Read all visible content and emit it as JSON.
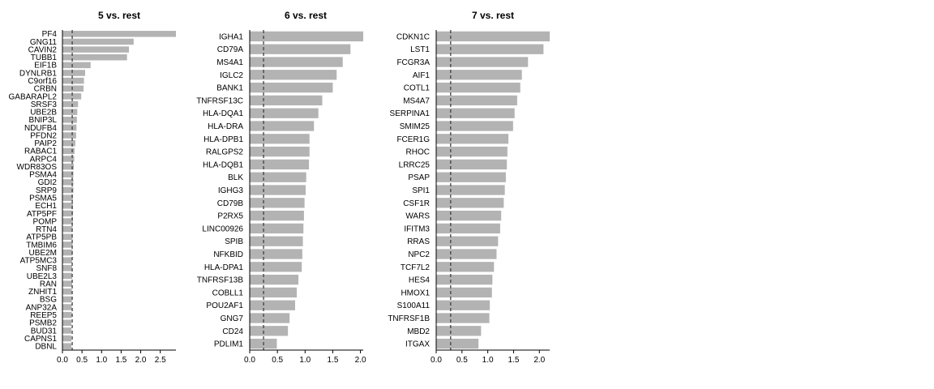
{
  "colors": {
    "bar": "#b3b3b3",
    "axis": "#000000",
    "threshold": "#404040",
    "background": "#ffffff"
  },
  "chart_data": [
    {
      "type": "bar",
      "orientation": "horizontal",
      "title": "5 vs. rest",
      "categories": [
        "PF4",
        "GNG11",
        "CAVIN2",
        "TUBB1",
        "EIF1B",
        "DYNLRB1",
        "C9orf16",
        "CRBN",
        "GABARAPL2",
        "SRSF3",
        "UBE2B",
        "BNIP3L",
        "NDUFB4",
        "PFDN2",
        "PAIP2",
        "RABAC1",
        "ARPC4",
        "WDR83OS",
        "PSMA4",
        "GDI2",
        "SRP9",
        "PSMA5",
        "ECH1",
        "ATP5PF",
        "POMP",
        "RTN4",
        "ATP5PB",
        "TMBIM6",
        "UBE2M",
        "ATP5MC3",
        "SNF8",
        "UBE2L3",
        "RAN",
        "ZNHIT1",
        "BSG",
        "ANP32A",
        "REEP5",
        "PSMB2",
        "BUD31",
        "CAPNS1",
        "DBNL"
      ],
      "values": [
        2.9,
        1.82,
        1.7,
        1.65,
        0.72,
        0.58,
        0.55,
        0.54,
        0.48,
        0.4,
        0.38,
        0.37,
        0.36,
        0.35,
        0.33,
        0.31,
        0.3,
        0.29,
        0.28,
        0.28,
        0.28,
        0.27,
        0.27,
        0.27,
        0.27,
        0.26,
        0.26,
        0.26,
        0.26,
        0.25,
        0.25,
        0.25,
        0.25,
        0.24,
        0.24,
        0.24,
        0.24,
        0.23,
        0.23,
        0.23,
        0.23
      ],
      "threshold": 0.25,
      "xlim": [
        0,
        2.9
      ],
      "xticks": [
        "0.0",
        "0.5",
        "1.0",
        "1.5",
        "2.0",
        "2.5"
      ]
    },
    {
      "type": "bar",
      "orientation": "horizontal",
      "title": "6 vs. rest",
      "categories": [
        "IGHA1",
        "CD79A",
        "MS4A1",
        "IGLC2",
        "BANK1",
        "TNFRSF13C",
        "HLA-DQA1",
        "HLA-DRA",
        "HLA-DPB1",
        "RALGPS2",
        "HLA-DQB1",
        "BLK",
        "IGHG3",
        "CD79B",
        "P2RX5",
        "LINC00926",
        "SPIB",
        "NFKBID",
        "HLA-DPA1",
        "TNFRSF13B",
        "COBLL1",
        "POU2AF1",
        "GNG7",
        "CD24",
        "PDLIM1"
      ],
      "values": [
        2.05,
        1.82,
        1.68,
        1.57,
        1.5,
        1.31,
        1.24,
        1.16,
        1.08,
        1.08,
        1.07,
        1.02,
        1.01,
        0.99,
        0.98,
        0.97,
        0.96,
        0.95,
        0.94,
        0.88,
        0.85,
        0.82,
        0.72,
        0.69,
        0.49
      ],
      "threshold": 0.25,
      "xlim": [
        0,
        2.05
      ],
      "xticks": [
        "0.0",
        "0.5",
        "1.0",
        "1.5",
        "2.0"
      ]
    },
    {
      "type": "bar",
      "orientation": "horizontal",
      "title": "7 vs. rest",
      "categories": [
        "CDKN1C",
        "LST1",
        "FCGR3A",
        "AIF1",
        "COTL1",
        "MS4A7",
        "SERPINA1",
        "SMIM25",
        "FCER1G",
        "RHOC",
        "LRRC25",
        "PSAP",
        "SPI1",
        "CSF1R",
        "WARS",
        "IFITM3",
        "RRAS",
        "NPC2",
        "TCF7L2",
        "HES4",
        "HMOX1",
        "S100A11",
        "TNFRSF1B",
        "MBD2",
        "ITGAX"
      ],
      "values": [
        2.2,
        2.08,
        1.78,
        1.66,
        1.63,
        1.57,
        1.52,
        1.49,
        1.4,
        1.38,
        1.37,
        1.35,
        1.33,
        1.31,
        1.26,
        1.24,
        1.2,
        1.17,
        1.12,
        1.09,
        1.08,
        1.04,
        1.03,
        0.87,
        0.82
      ],
      "threshold": 0.28,
      "xlim": [
        0,
        2.2
      ],
      "xticks": [
        "0.0",
        "0.5",
        "1.0",
        "1.5",
        "2.0"
      ]
    }
  ]
}
